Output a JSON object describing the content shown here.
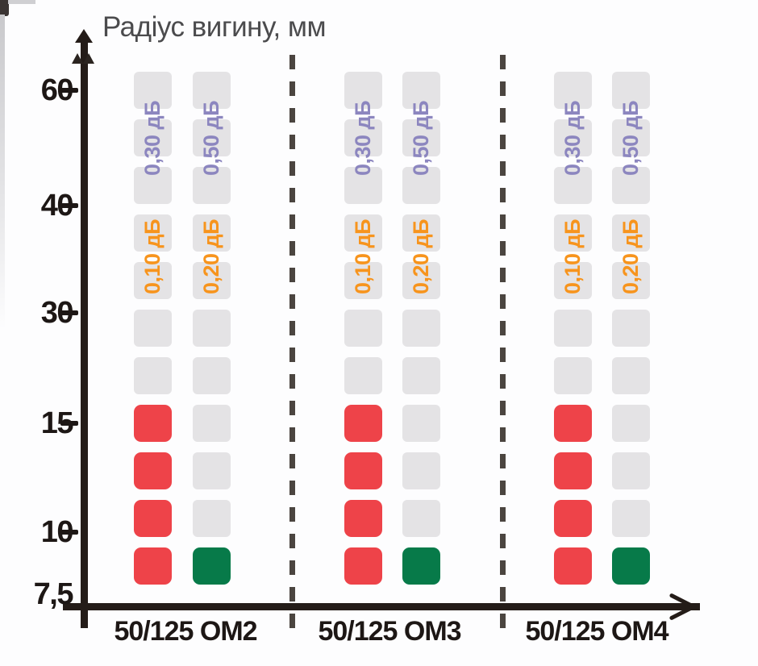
{
  "chart_data": {
    "type": "heatmap",
    "title": "Радіус вигину, мм",
    "ylabel": "Радіус вигину, мм",
    "y_ticks": [
      "60",
      "40",
      "30",
      "15",
      "10",
      "7,5"
    ],
    "y_tick_values": [
      60,
      40,
      30,
      15,
      10,
      7.5
    ],
    "y_axis_scale": "non-linear, ticks at 60/40/30/15/10/7,5 mm",
    "rows_per_column": 11,
    "legend_position": "none",
    "grid": false,
    "cell_colors": {
      "gray": "#e4e3e5",
      "red": "#ee4349",
      "green": "#077a49"
    },
    "label_colors": {
      "purple": "#8c86bf",
      "orange": "#f7941d"
    },
    "categories": [
      "50/125 ОМ2",
      "50/125 ОМ3",
      "50/125 ОМ4"
    ],
    "groups": [
      {
        "label": "50/125 ОМ2",
        "columns": [
          {
            "attenuation_labels": [
              {
                "text": "0,30 дБ",
                "color": "#8c86bf"
              },
              {
                "text": "0,10 дБ",
                "color": "#f7941d"
              }
            ],
            "cells": [
              "gray",
              "gray",
              "gray",
              "gray",
              "gray",
              "gray",
              "gray",
              "red",
              "red",
              "red",
              "red"
            ]
          },
          {
            "attenuation_labels": [
              {
                "text": "0,50 дБ",
                "color": "#8c86bf"
              },
              {
                "text": "0,20 дБ",
                "color": "#f7941d"
              }
            ],
            "cells": [
              "gray",
              "gray",
              "gray",
              "gray",
              "gray",
              "gray",
              "gray",
              "gray",
              "gray",
              "gray",
              "green"
            ]
          }
        ]
      },
      {
        "label": "50/125 ОМ3",
        "columns": [
          {
            "attenuation_labels": [
              {
                "text": "0,30 дБ",
                "color": "#8c86bf"
              },
              {
                "text": "0,10 дБ",
                "color": "#f7941d"
              }
            ],
            "cells": [
              "gray",
              "gray",
              "gray",
              "gray",
              "gray",
              "gray",
              "gray",
              "red",
              "red",
              "red",
              "red"
            ]
          },
          {
            "attenuation_labels": [
              {
                "text": "0,50 дБ",
                "color": "#8c86bf"
              },
              {
                "text": "0,20 дБ",
                "color": "#f7941d"
              }
            ],
            "cells": [
              "gray",
              "gray",
              "gray",
              "gray",
              "gray",
              "gray",
              "gray",
              "gray",
              "gray",
              "gray",
              "green"
            ]
          }
        ]
      },
      {
        "label": "50/125 ОМ4",
        "columns": [
          {
            "attenuation_labels": [
              {
                "text": "0,30 дБ",
                "color": "#8c86bf"
              },
              {
                "text": "0,10 дБ",
                "color": "#f7941d"
              }
            ],
            "cells": [
              "gray",
              "gray",
              "gray",
              "gray",
              "gray",
              "gray",
              "gray",
              "red",
              "red",
              "red",
              "red"
            ]
          },
          {
            "attenuation_labels": [
              {
                "text": "0,50 дБ",
                "color": "#8c86bf"
              },
              {
                "text": "0,20 дБ",
                "color": "#f7941d"
              }
            ],
            "cells": [
              "gray",
              "gray",
              "gray",
              "gray",
              "gray",
              "gray",
              "gray",
              "gray",
              "gray",
              "gray",
              "green"
            ]
          }
        ]
      }
    ]
  }
}
